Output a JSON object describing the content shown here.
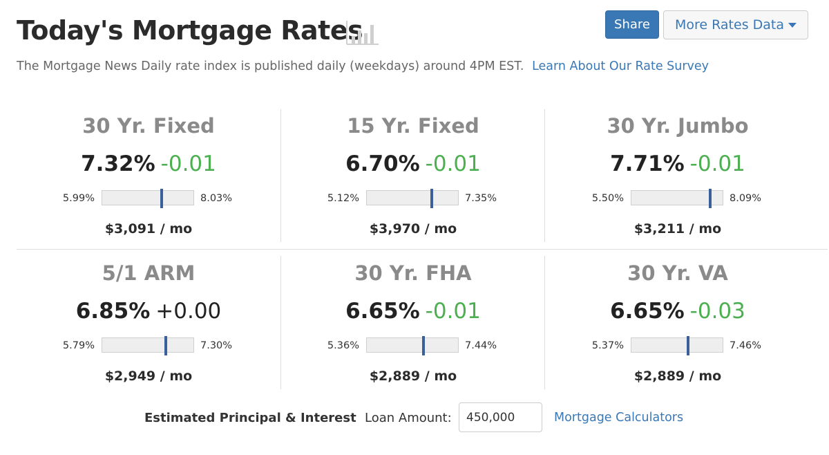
{
  "header": {
    "title": "Today's Mortgage Rates",
    "share_label": "Share",
    "more_label": "More Rates Data",
    "subtitle": "The Mortgage News Daily rate index is published daily (weekdays) around 4PM EST.",
    "survey_link": "Learn About Our Rate Survey"
  },
  "cards": [
    {
      "name": "30 Yr. Fixed",
      "rate": "7.32%",
      "change": "-0.01",
      "low": "5.99%",
      "high": "8.03%",
      "payment": "$3,091 / mo",
      "position": 0.65
    },
    {
      "name": "15 Yr. Fixed",
      "rate": "6.70%",
      "change": "-0.01",
      "low": "5.12%",
      "high": "7.35%",
      "payment": "$3,970 / mo",
      "position": 0.71
    },
    {
      "name": "30 Yr. Jumbo",
      "rate": "7.71%",
      "change": "-0.01",
      "low": "5.50%",
      "high": "8.09%",
      "payment": "$3,211 / mo",
      "position": 0.86
    },
    {
      "name": "5/1 ARM",
      "rate": "6.85%",
      "change": "+0.00",
      "low": "5.79%",
      "high": "7.30%",
      "payment": "$2,949 / mo",
      "position": 0.7
    },
    {
      "name": "30 Yr. FHA",
      "rate": "6.65%",
      "change": "-0.01",
      "low": "5.36%",
      "high": "7.44%",
      "payment": "$2,889 / mo",
      "position": 0.62
    },
    {
      "name": "30 Yr. VA",
      "rate": "6.65%",
      "change": "-0.03",
      "low": "5.37%",
      "high": "7.46%",
      "payment": "$2,889 / mo",
      "position": 0.62
    }
  ],
  "footer": {
    "estimate_label": "Estimated Principal & Interest",
    "loan_label": "Loan Amount:",
    "loan_value": "450,000",
    "calculators_link": "Mortgage Calculators"
  },
  "colors": {
    "accent": "#3a78b5",
    "negative_change": "#4caf50",
    "marker": "#3b5f9a"
  }
}
